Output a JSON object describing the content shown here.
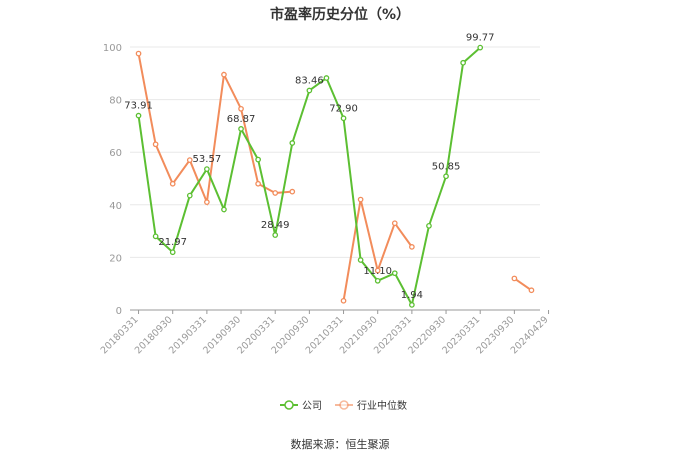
{
  "title": "市盈率历史分位（%）",
  "source": "数据来源：恒生聚源",
  "chart_data": {
    "type": "line",
    "title": "市盈率历史分位（%）",
    "ylim": [
      0,
      100
    ],
    "yticks": [
      0,
      20,
      40,
      60,
      80,
      100
    ],
    "x_tick_labels": [
      "20180331",
      "20180930",
      "20190331",
      "20190930",
      "20200331",
      "20200930",
      "20210331",
      "20210930",
      "20220331",
      "20220930",
      "20230331",
      "20230930",
      "20240429"
    ],
    "grid": true,
    "legend_position": "bottom",
    "series": [
      {
        "name": "公司",
        "color": "#5cbf32",
        "values": [
          73.91,
          28,
          21.97,
          43.5,
          53.57,
          38.2,
          68.87,
          57.2,
          28.49,
          63.5,
          83.46,
          88.2,
          72.9,
          19,
          11.1,
          14,
          1.94,
          32,
          50.85,
          94,
          99.77
        ],
        "labels": {
          "0": "73.91",
          "2": "21.97",
          "4": "53.57",
          "6": "68.87",
          "8": "28.49",
          "10": "83.46",
          "12": "72.90",
          "14": "11.10",
          "16": "1.94",
          "18": "50.85",
          "20": "99.77"
        }
      },
      {
        "name": "行业中位数",
        "color": "#f28c5b",
        "values": [
          97.5,
          63,
          48,
          57,
          41,
          89.5,
          76.5,
          48,
          44.5,
          45,
          null,
          null,
          3.5,
          42,
          15,
          33,
          24,
          null,
          null,
          null,
          null,
          null,
          12,
          7.5
        ]
      }
    ]
  }
}
